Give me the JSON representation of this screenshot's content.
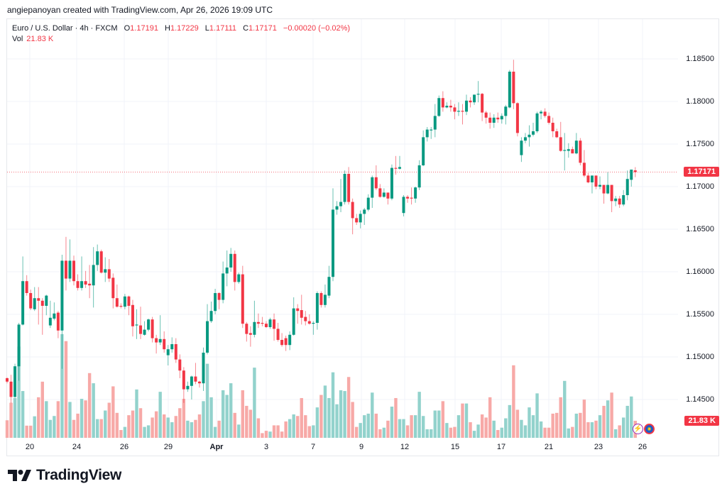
{
  "credit": "angiepanoyan created with TradingView.com, Apr 26, 2026 19:09 UTC",
  "legend": {
    "symbol": "Euro / U.S. Dollar · 4h · FXCM",
    "o_label": "O",
    "o": "1.17191",
    "h_label": "H",
    "h": "1.17229",
    "l_label": "L",
    "l": "1.17111",
    "c_label": "C",
    "c": "1.17171",
    "change": "−0.00020 (−0.02%)",
    "vol_label": "Vol",
    "vol": "21.83 K"
  },
  "price_axis": [
    "1.18500",
    "1.18000",
    "1.17500",
    "1.17000",
    "1.16500",
    "1.16000",
    "1.15500",
    "1.15000",
    "1.14500"
  ],
  "price_tag": "1.17171",
  "volume_tag": "21.83 K",
  "time_axis": [
    "20",
    "24",
    "26",
    "29",
    "Apr",
    "3",
    "7",
    "9",
    "12",
    "15",
    "17",
    "21",
    "23",
    "26"
  ],
  "colors": {
    "up": "#089981",
    "down": "#f23645",
    "up_vol": "#92d2cc",
    "down_vol": "#f7a9a7",
    "grid": "#f0f3fa"
  },
  "icons": {
    "events": "lightning-icon",
    "currency": "eu-flag-icon"
  },
  "brand": "TradingView",
  "chart_data": {
    "type": "candlestick",
    "title": "Euro / U.S. Dollar · 4h · FXCM",
    "ylim": [
      1.1415,
      1.1875
    ],
    "fields": [
      "open",
      "high",
      "low",
      "close",
      "volume_k"
    ],
    "candles": [
      [
        1.1475,
        1.1476,
        1.1469,
        1.1471,
        22.5
      ],
      [
        1.1471,
        1.1479,
        1.1446,
        1.1453,
        45
      ],
      [
        1.1453,
        1.1492,
        1.1452,
        1.1489,
        51
      ],
      [
        1.1489,
        1.154,
        1.1472,
        1.1538,
        117
      ],
      [
        1.1538,
        1.1618,
        1.1537,
        1.1589,
        60
      ],
      [
        1.1589,
        1.1596,
        1.1572,
        1.1575,
        15.6
      ],
      [
        1.1575,
        1.1579,
        1.1555,
        1.1557,
        15.6
      ],
      [
        1.1556,
        1.1582,
        1.1554,
        1.1569,
        27.6
      ],
      [
        1.1569,
        1.1582,
        1.1538,
        1.1566,
        52
      ],
      [
        1.1566,
        1.1569,
        1.1526,
        1.156,
        72
      ],
      [
        1.156,
        1.1573,
        1.1549,
        1.1572,
        47
      ],
      [
        1.1537,
        1.1566,
        1.1534,
        1.1546,
        23
      ],
      [
        1.1545,
        1.1564,
        1.1543,
        1.1551,
        28
      ],
      [
        1.1552,
        1.1554,
        1.1522,
        1.1531,
        47
      ],
      [
        1.1531,
        1.162,
        1.1486,
        1.1613,
        133
      ],
      [
        1.1613,
        1.1641,
        1.1578,
        1.1592,
        124
      ],
      [
        1.1592,
        1.1638,
        1.1588,
        1.1613,
        46
      ],
      [
        1.1613,
        1.1619,
        1.1584,
        1.1589,
        23
      ],
      [
        1.1589,
        1.1597,
        1.1578,
        1.1581,
        31
      ],
      [
        1.1581,
        1.1618,
        1.1578,
        1.1589,
        50
      ],
      [
        1.1589,
        1.1601,
        1.1581,
        1.1585,
        48
      ],
      [
        1.1586,
        1.1608,
        1.1569,
        1.1584,
        83
      ],
      [
        1.1584,
        1.1629,
        1.1558,
        1.1608,
        70
      ],
      [
        1.1608,
        1.1632,
        1.1601,
        1.1624,
        24
      ],
      [
        1.1624,
        1.1626,
        1.1598,
        1.1599,
        24
      ],
      [
        1.1599,
        1.1617,
        1.1588,
        1.1603,
        35
      ],
      [
        1.1603,
        1.1615,
        1.1588,
        1.1592,
        45
      ],
      [
        1.1593,
        1.1598,
        1.1557,
        1.1569,
        66
      ],
      [
        1.1569,
        1.1585,
        1.1558,
        1.1559,
        32
      ],
      [
        1.156,
        1.1563,
        1.1557,
        1.1559,
        10
      ],
      [
        1.1559,
        1.1574,
        1.1556,
        1.1571,
        14
      ],
      [
        1.1571,
        1.1572,
        1.1549,
        1.156,
        29
      ],
      [
        1.1561,
        1.1567,
        1.1524,
        1.1536,
        35
      ],
      [
        1.1537,
        1.1556,
        1.1521,
        1.1538,
        62
      ],
      [
        1.1537,
        1.1559,
        1.1521,
        1.1527,
        38
      ],
      [
        1.1526,
        1.1542,
        1.1525,
        1.1532,
        14
      ],
      [
        1.1532,
        1.1545,
        1.153,
        1.1544,
        16
      ],
      [
        1.1544,
        1.1547,
        1.1517,
        1.1522,
        26
      ],
      [
        1.1522,
        1.1526,
        1.1504,
        1.1517,
        34
      ],
      [
        1.1517,
        1.1549,
        1.1514,
        1.1521,
        59
      ],
      [
        1.1521,
        1.153,
        1.1505,
        1.1509,
        30
      ],
      [
        1.1502,
        1.1514,
        1.149,
        1.1509,
        26
      ],
      [
        1.1509,
        1.1523,
        1.1505,
        1.1515,
        20
      ],
      [
        1.1515,
        1.1522,
        1.1493,
        1.1497,
        28
      ],
      [
        1.1497,
        1.1503,
        1.1475,
        1.1484,
        38
      ],
      [
        1.1484,
        1.1488,
        1.1446,
        1.1462,
        50
      ],
      [
        1.1462,
        1.1471,
        1.1459,
        1.1466,
        22
      ],
      [
        1.1466,
        1.1478,
        1.145,
        1.1477,
        20
      ],
      [
        1.1477,
        1.1493,
        1.1468,
        1.1471,
        23
      ],
      [
        1.1471,
        1.1472,
        1.1464,
        1.1469,
        30
      ],
      [
        1.1469,
        1.1511,
        1.146,
        1.1505,
        47
      ],
      [
        1.1505,
        1.1562,
        1.1503,
        1.1542,
        95
      ],
      [
        1.1542,
        1.1565,
        1.154,
        1.1554,
        52
      ],
      [
        1.1554,
        1.158,
        1.155,
        1.1575,
        14
      ],
      [
        1.1575,
        1.1576,
        1.1556,
        1.1567,
        22
      ],
      [
        1.1567,
        1.1612,
        1.1563,
        1.1598,
        61
      ],
      [
        1.1598,
        1.1625,
        1.1583,
        1.1605,
        55
      ],
      [
        1.1605,
        1.1628,
        1.16,
        1.1621,
        70
      ],
      [
        1.1621,
        1.1625,
        1.1578,
        1.1588,
        32
      ],
      [
        1.1588,
        1.1599,
        1.1586,
        1.1597,
        17
      ],
      [
        1.1597,
        1.1607,
        1.1534,
        1.1539,
        61
      ],
      [
        1.1539,
        1.1541,
        1.1518,
        1.1527,
        41
      ],
      [
        1.1528,
        1.1536,
        1.1512,
        1.1526,
        36
      ],
      [
        1.1526,
        1.1566,
        1.1523,
        1.1541,
        90
      ],
      [
        1.1541,
        1.1551,
        1.1534,
        1.1539,
        25
      ],
      [
        1.154,
        1.1547,
        1.1536,
        1.1539,
        6
      ],
      [
        1.1539,
        1.1542,
        1.1534,
        1.1535,
        9
      ],
      [
        1.1535,
        1.1546,
        1.1533,
        1.1544,
        8
      ],
      [
        1.1544,
        1.1551,
        1.1519,
        1.1533,
        16
      ],
      [
        1.1533,
        1.154,
        1.1518,
        1.152,
        16
      ],
      [
        1.152,
        1.1528,
        1.1512,
        1.1514,
        8
      ],
      [
        1.1522,
        1.1525,
        1.1507,
        1.1514,
        21
      ],
      [
        1.1514,
        1.153,
        1.1508,
        1.1526,
        24
      ],
      [
        1.1526,
        1.157,
        1.1525,
        1.1557,
        30
      ],
      [
        1.1557,
        1.1562,
        1.1539,
        1.1554,
        28
      ],
      [
        1.1555,
        1.1573,
        1.1538,
        1.1546,
        51
      ],
      [
        1.1547,
        1.1554,
        1.1537,
        1.1542,
        29
      ],
      [
        1.1542,
        1.155,
        1.1538,
        1.1539,
        15
      ],
      [
        1.1539,
        1.1542,
        1.1526,
        1.154,
        16
      ],
      [
        1.154,
        1.1577,
        1.1532,
        1.1575,
        39
      ],
      [
        1.1575,
        1.1577,
        1.1558,
        1.1561,
        55
      ],
      [
        1.1561,
        1.1585,
        1.1558,
        1.1573,
        67
      ],
      [
        1.1572,
        1.1607,
        1.1569,
        1.1594,
        51
      ],
      [
        1.1594,
        1.1698,
        1.1589,
        1.1673,
        84
      ],
      [
        1.1673,
        1.1683,
        1.1667,
        1.1677,
        43
      ],
      [
        1.1677,
        1.1709,
        1.167,
        1.1682,
        61
      ],
      [
        1.1682,
        1.1719,
        1.1679,
        1.1715,
        60
      ],
      [
        1.1715,
        1.1723,
        1.1679,
        1.1682,
        78
      ],
      [
        1.1682,
        1.1686,
        1.1644,
        1.1663,
        46
      ],
      [
        1.1663,
        1.1668,
        1.1655,
        1.1658,
        14
      ],
      [
        1.1658,
        1.1672,
        1.1651,
        1.1668,
        19
      ],
      [
        1.1668,
        1.1675,
        1.1655,
        1.1673,
        29
      ],
      [
        1.1673,
        1.1691,
        1.1671,
        1.1687,
        31
      ],
      [
        1.1687,
        1.1713,
        1.1675,
        1.1711,
        58
      ],
      [
        1.1711,
        1.1725,
        1.1696,
        1.1698,
        31
      ],
      [
        1.1698,
        1.1703,
        1.1687,
        1.1688,
        11
      ],
      [
        1.1688,
        1.1698,
        1.1687,
        1.1693,
        13
      ],
      [
        1.1693,
        1.1693,
        1.1679,
        1.1686,
        22
      ],
      [
        1.1686,
        1.1726,
        1.1684,
        1.1722,
        40
      ],
      [
        1.1722,
        1.1736,
        1.1714,
        1.1721,
        51
      ],
      [
        1.1721,
        1.1736,
        1.172,
        1.1723,
        24
      ],
      [
        1.1669,
        1.169,
        1.1665,
        1.1688,
        24
      ],
      [
        1.1688,
        1.169,
        1.1681,
        1.1686,
        16
      ],
      [
        1.1687,
        1.1699,
        1.1679,
        1.1686,
        29
      ],
      [
        1.1686,
        1.17,
        1.1681,
        1.1699,
        29
      ],
      [
        1.1699,
        1.1731,
        1.1696,
        1.1725,
        59
      ],
      [
        1.1725,
        1.1766,
        1.1724,
        1.1758,
        28
      ],
      [
        1.1758,
        1.177,
        1.1753,
        1.1767,
        11
      ],
      [
        1.1766,
        1.177,
        1.1756,
        1.1767,
        11
      ],
      [
        1.1767,
        1.1797,
        1.1758,
        1.1783,
        35
      ],
      [
        1.1783,
        1.1807,
        1.1782,
        1.1804,
        35
      ],
      [
        1.1804,
        1.1812,
        1.1788,
        1.1793,
        47
      ],
      [
        1.1793,
        1.1799,
        1.1792,
        1.1795,
        19
      ],
      [
        1.1795,
        1.1802,
        1.1788,
        1.1793,
        13
      ],
      [
        1.1793,
        1.1797,
        1.1779,
        1.1788,
        14
      ],
      [
        1.1788,
        1.1799,
        1.1783,
        1.1789,
        29
      ],
      [
        1.1789,
        1.1797,
        1.1773,
        1.1788,
        44
      ],
      [
        1.1788,
        1.1808,
        1.1784,
        1.1801,
        44
      ],
      [
        1.1801,
        1.1805,
        1.1793,
        1.1799,
        20
      ],
      [
        1.1799,
        1.1808,
        1.1796,
        1.1808,
        9
      ],
      [
        1.1808,
        1.1824,
        1.1799,
        1.1809,
        17
      ],
      [
        1.1809,
        1.181,
        1.1777,
        1.1787,
        30
      ],
      [
        1.1787,
        1.1789,
        1.1774,
        1.1781,
        26
      ],
      [
        1.1781,
        1.1787,
        1.1768,
        1.1775,
        52
      ],
      [
        1.1775,
        1.1785,
        1.1769,
        1.1781,
        22
      ],
      [
        1.1781,
        1.1787,
        1.1775,
        1.1779,
        10
      ],
      [
        1.1779,
        1.1786,
        1.1774,
        1.1783,
        13
      ],
      [
        1.1783,
        1.1796,
        1.1773,
        1.1794,
        25
      ],
      [
        1.1793,
        1.1837,
        1.1792,
        1.1835,
        42
      ],
      [
        1.1835,
        1.1849,
        1.1791,
        1.1798,
        93
      ],
      [
        1.1798,
        1.1799,
        1.1759,
        1.1763,
        36
      ],
      [
        1.1737,
        1.1758,
        1.1729,
        1.1754,
        23
      ],
      [
        1.1754,
        1.1763,
        1.1751,
        1.1758,
        16
      ],
      [
        1.1758,
        1.1772,
        1.1747,
        1.1761,
        39
      ],
      [
        1.1761,
        1.1775,
        1.1759,
        1.1765,
        29
      ],
      [
        1.1765,
        1.1788,
        1.1763,
        1.1786,
        57
      ],
      [
        1.1786,
        1.179,
        1.1779,
        1.1788,
        21
      ],
      [
        1.1788,
        1.1792,
        1.1781,
        1.1783,
        13
      ],
      [
        1.1783,
        1.1787,
        1.1773,
        1.1775,
        13
      ],
      [
        1.1775,
        1.1781,
        1.1758,
        1.1765,
        31
      ],
      [
        1.1765,
        1.1768,
        1.1757,
        1.1758,
        32
      ],
      [
        1.1758,
        1.1776,
        1.1741,
        1.1742,
        52
      ],
      [
        1.1742,
        1.1763,
        1.1719,
        1.1743,
        73
      ],
      [
        1.1742,
        1.1751,
        1.1734,
        1.1744,
        12
      ],
      [
        1.1744,
        1.1747,
        1.1739,
        1.1739,
        14
      ],
      [
        1.1739,
        1.1763,
        1.1738,
        1.1754,
        31
      ],
      [
        1.1754,
        1.1757,
        1.1725,
        1.1728,
        32
      ],
      [
        1.1728,
        1.1743,
        1.1711,
        1.1713,
        49
      ],
      [
        1.1713,
        1.1716,
        1.1704,
        1.1705,
        20
      ],
      [
        1.1705,
        1.1713,
        1.1692,
        1.1713,
        20
      ],
      [
        1.1713,
        1.1713,
        1.1697,
        1.17,
        22
      ],
      [
        1.17,
        1.1712,
        1.1697,
        1.1702,
        29
      ],
      [
        1.1702,
        1.1702,
        1.168,
        1.1692,
        41
      ],
      [
        1.1692,
        1.1717,
        1.1691,
        1.1702,
        48
      ],
      [
        1.1702,
        1.1702,
        1.167,
        1.1683,
        58
      ],
      [
        1.1683,
        1.1689,
        1.1677,
        1.1686,
        11
      ],
      [
        1.1686,
        1.1689,
        1.1675,
        1.1679,
        16
      ],
      [
        1.1679,
        1.1696,
        1.1677,
        1.169,
        26
      ],
      [
        1.169,
        1.1719,
        1.1684,
        1.1709,
        41
      ],
      [
        1.1708,
        1.172,
        1.17,
        1.172,
        53
      ],
      [
        1.17191,
        1.17229,
        1.17111,
        1.17171,
        21.83
      ]
    ]
  }
}
